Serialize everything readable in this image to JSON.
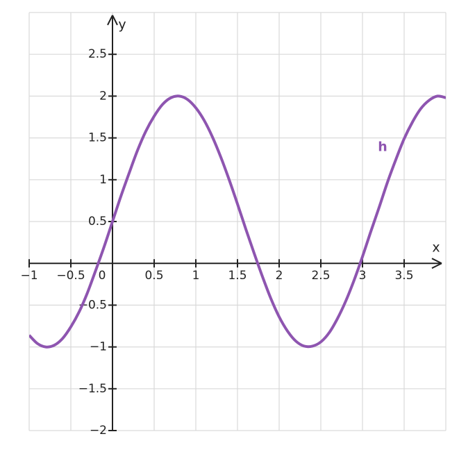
{
  "chart_data": {
    "type": "line",
    "x_label": "x",
    "y_label": "y",
    "xlim": [
      -1,
      4
    ],
    "ylim": [
      -2,
      3
    ],
    "xticks": [
      {
        "value": -1,
        "label": "−1"
      },
      {
        "value": -0.5,
        "label": "−0.5"
      },
      0,
      0.5,
      1,
      1.5,
      2,
      2.5,
      3,
      3.5
    ],
    "yticks": [
      {
        "value": -2,
        "label": "−2"
      },
      {
        "value": -1.5,
        "label": "−1.5"
      },
      {
        "value": -1,
        "label": "−1"
      },
      {
        "value": -0.5,
        "label": "−0.5"
      },
      0.5,
      1,
      1.5,
      2,
      2.5
    ],
    "grid": true,
    "x": [
      -1,
      -0.9,
      -0.8,
      -0.7,
      -0.6,
      -0.5,
      -0.4,
      -0.3,
      -0.2,
      -0.1,
      0,
      0.1,
      0.2,
      0.3,
      0.4,
      0.5,
      0.6,
      0.7,
      0.8,
      0.9,
      1,
      1.1,
      1.2,
      1.3,
      1.4,
      1.5,
      1.6,
      1.7,
      1.8,
      1.9,
      2,
      2.1,
      2.2,
      2.3,
      2.4,
      2.5,
      2.6,
      2.7,
      2.8,
      2.9,
      3,
      3.1,
      3.2,
      3.3,
      3.4,
      3.5,
      3.6,
      3.7,
      3.8,
      3.9,
      4
    ],
    "series": [
      {
        "name": "h",
        "color": "#8e55b0",
        "values": [
          -0.86,
          -0.96,
          -1.0,
          -0.98,
          -0.9,
          -0.76,
          -0.58,
          -0.35,
          -0.08,
          0.2,
          0.5,
          0.8,
          1.08,
          1.35,
          1.58,
          1.76,
          1.9,
          1.98,
          2.0,
          1.96,
          1.86,
          1.71,
          1.51,
          1.27,
          1.0,
          0.71,
          0.41,
          0.12,
          -0.16,
          -0.42,
          -0.64,
          -0.81,
          -0.93,
          -0.99,
          -0.99,
          -0.94,
          -0.83,
          -0.66,
          -0.45,
          -0.2,
          0.08,
          0.38,
          0.67,
          0.97,
          1.24,
          1.49,
          1.69,
          1.85,
          1.95,
          2.0,
          1.98
        ]
      }
    ]
  }
}
